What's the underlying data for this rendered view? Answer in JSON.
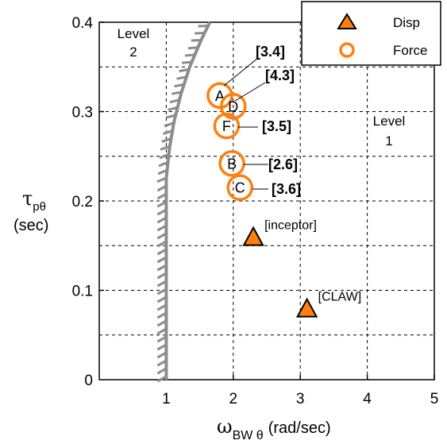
{
  "chart_data": {
    "type": "scatter",
    "xlim": [
      0,
      5
    ],
    "ylim": [
      0,
      0.4
    ],
    "x_ticks": [
      "1",
      "2",
      "3",
      "4",
      "5"
    ],
    "y_ticks": [
      "0",
      "0.1",
      "0.2",
      "0.3",
      "0.4"
    ],
    "grid": true,
    "xlabel": {
      "symbol": "ω",
      "sub": "BW θ",
      "text": "(rad/sec)"
    },
    "ylabel": {
      "symbol": "τ",
      "sub": "pθ",
      "unit": "(sec)"
    },
    "regions": [
      {
        "line1": "Level",
        "line2": "2"
      },
      {
        "line1": "Level",
        "line2": "1"
      }
    ],
    "boundary": {
      "vertical": {
        "x": 1.0,
        "y_from": 0,
        "y_to": 0.225
      },
      "curve": [
        [
          1.0,
          0.225
        ],
        [
          1.05,
          0.26
        ],
        [
          1.12,
          0.29
        ],
        [
          1.22,
          0.32
        ],
        [
          1.35,
          0.35
        ],
        [
          1.52,
          0.38
        ],
        [
          1.65,
          0.4
        ]
      ]
    },
    "legend": {
      "position": "top-right",
      "entries": [
        "Disp",
        "Force"
      ]
    },
    "series": [
      {
        "name": "Disp",
        "marker": "triangle",
        "color": "#FF7F0E",
        "points": [
          {
            "x": 2.3,
            "y": 0.158,
            "annotation": "[inceptor]"
          },
          {
            "x": 3.1,
            "y": 0.078,
            "annotation": "[CLAW]"
          }
        ]
      },
      {
        "name": "Force",
        "marker": "circle",
        "color": "#FF7F0E",
        "points": [
          {
            "x": 1.8,
            "y": 0.318,
            "label": "A",
            "rating": "[3.4]"
          },
          {
            "x": 2.0,
            "y": 0.306,
            "label": "D",
            "rating": "[4.3]"
          },
          {
            "x": 1.9,
            "y": 0.284,
            "label": "F",
            "rating": "[3.5]"
          },
          {
            "x": 1.98,
            "y": 0.242,
            "label": "B",
            "rating": "[2.6]"
          },
          {
            "x": 2.1,
            "y": 0.215,
            "label": "C",
            "rating": "[3.6]"
          }
        ]
      }
    ]
  }
}
